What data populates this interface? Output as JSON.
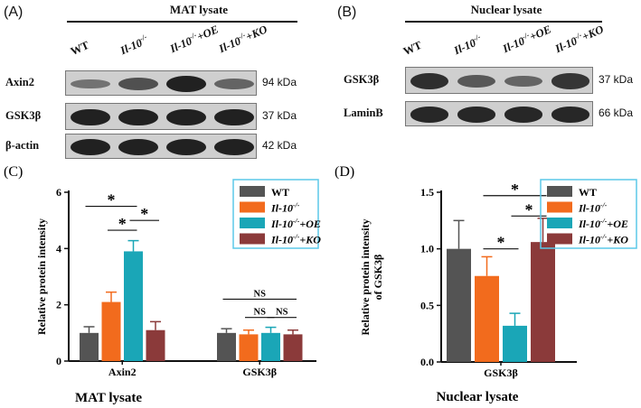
{
  "panel_a": {
    "letter": "(A)",
    "header": "MAT lysate",
    "lanes": [
      {
        "base": "WT",
        "sup": "",
        "suffix": ""
      },
      {
        "base": "Il-10",
        "sup": "-/-",
        "suffix": ""
      },
      {
        "base": "Il-10",
        "sup": "-/-",
        "suffix": "+OE"
      },
      {
        "base": "Il-10",
        "sup": "-/-",
        "suffix": "+KO"
      }
    ],
    "rows": [
      {
        "protein": "Axin2",
        "kda": "94 kDa"
      },
      {
        "protein": "GSK3β",
        "kda": "37 kDa"
      },
      {
        "protein": "β-actin",
        "kda": "42 kDa"
      }
    ]
  },
  "panel_b": {
    "letter": "(B)",
    "header": "Nuclear lysate",
    "lanes": [
      {
        "base": "WT",
        "sup": "",
        "suffix": ""
      },
      {
        "base": "Il-10",
        "sup": "-/-",
        "suffix": ""
      },
      {
        "base": "Il-10",
        "sup": "-/-",
        "suffix": "+OE"
      },
      {
        "base": "Il-10",
        "sup": "-/-",
        "suffix": "+KO"
      }
    ],
    "rows": [
      {
        "protein": "GSK3β",
        "kda": "37 kDa"
      },
      {
        "protein": "LaminB",
        "kda": "66 kDa"
      }
    ]
  },
  "band_intensity": {
    "a_axin2": [
      0.35,
      0.6,
      0.95,
      0.45
    ],
    "a_gsk3b": [
      0.95,
      0.95,
      0.95,
      0.95
    ],
    "a_actin": [
      0.95,
      0.95,
      0.95,
      0.95
    ],
    "b_gsk3b": [
      0.85,
      0.55,
      0.45,
      0.8
    ],
    "b_laminb": [
      0.9,
      0.9,
      0.9,
      0.9
    ]
  },
  "colors": {
    "wt": "#545454",
    "ko": "#f26b1d",
    "oe": "#1aa6b7",
    "ko_plus": "#8b3a3a",
    "legend_border": "#5bc8e8"
  },
  "legend": [
    {
      "base": "WT",
      "sup": "",
      "suffix": ""
    },
    {
      "base": "Il-10",
      "sup": "-/-",
      "suffix": ""
    },
    {
      "base": "Il-10",
      "sup": "-/-",
      "suffix": "+OE"
    },
    {
      "base": "Il-10",
      "sup": "-/-",
      "suffix": "+KO"
    }
  ],
  "chart_data": [
    {
      "type": "bar",
      "panel": "(C)",
      "xlabel": "MAT lysate",
      "ylabel": "Relative protein intensity",
      "ylim": [
        0,
        6
      ],
      "yticks": [
        0,
        2,
        4,
        6
      ],
      "categories": [
        "Axin2",
        "GSK3β"
      ],
      "series": [
        {
          "name": "WT",
          "values": [
            1.0,
            1.0
          ],
          "errors": [
            0.22,
            0.15
          ]
        },
        {
          "name": "Il-10-/-",
          "values": [
            2.1,
            0.95
          ],
          "errors": [
            0.35,
            0.15
          ]
        },
        {
          "name": "Il-10-/-+OE",
          "values": [
            3.9,
            1.0
          ],
          "errors": [
            0.38,
            0.2
          ]
        },
        {
          "name": "Il-10-/-+KO",
          "values": [
            1.1,
            0.95
          ],
          "errors": [
            0.3,
            0.15
          ]
        }
      ],
      "annotations": [
        {
          "text": "*",
          "group": 0,
          "from": 0,
          "to": 2,
          "y": 5.5
        },
        {
          "text": "*",
          "group": 0,
          "from": 1,
          "to": 2,
          "y": 4.65
        },
        {
          "text": "*",
          "group": 0,
          "from": 2,
          "to": 3,
          "y": 5.0
        },
        {
          "text": "NS",
          "group": 1,
          "from": 0,
          "to": 3,
          "y": 2.2
        },
        {
          "text": "NS",
          "group": 1,
          "from": 1,
          "to": 2,
          "y": 1.55
        },
        {
          "text": "NS",
          "group": 1,
          "from": 2,
          "to": 3,
          "y": 1.55
        }
      ]
    },
    {
      "type": "bar",
      "panel": "(D)",
      "xlabel": "Nuclear lysate",
      "ylabel": "Relative protein intensity of GSK3β",
      "ylim": [
        0,
        1.5
      ],
      "yticks": [
        0.0,
        0.5,
        1.0,
        1.5
      ],
      "ytick_labels": [
        "0.0",
        "0.5",
        "1.0",
        "1.5"
      ],
      "categories": [
        "GSK3β"
      ],
      "series": [
        {
          "name": "WT",
          "values": [
            1.0
          ],
          "errors": [
            0.25
          ]
        },
        {
          "name": "Il-10-/-",
          "values": [
            0.76
          ],
          "errors": [
            0.17
          ]
        },
        {
          "name": "Il-10-/-+OE",
          "values": [
            0.32
          ],
          "errors": [
            0.11
          ]
        },
        {
          "name": "Il-10-/-+KO",
          "values": [
            1.06
          ],
          "errors": [
            0.21
          ]
        }
      ],
      "annotations": [
        {
          "text": "*",
          "group": 0,
          "from": 1,
          "to": 2,
          "y": 1.0
        },
        {
          "text": "*",
          "group": 0,
          "from": 1,
          "to": 3,
          "y": 1.47
        },
        {
          "text": "*",
          "group": 0,
          "from": 2,
          "to": 3,
          "y": 1.29
        }
      ]
    }
  ]
}
